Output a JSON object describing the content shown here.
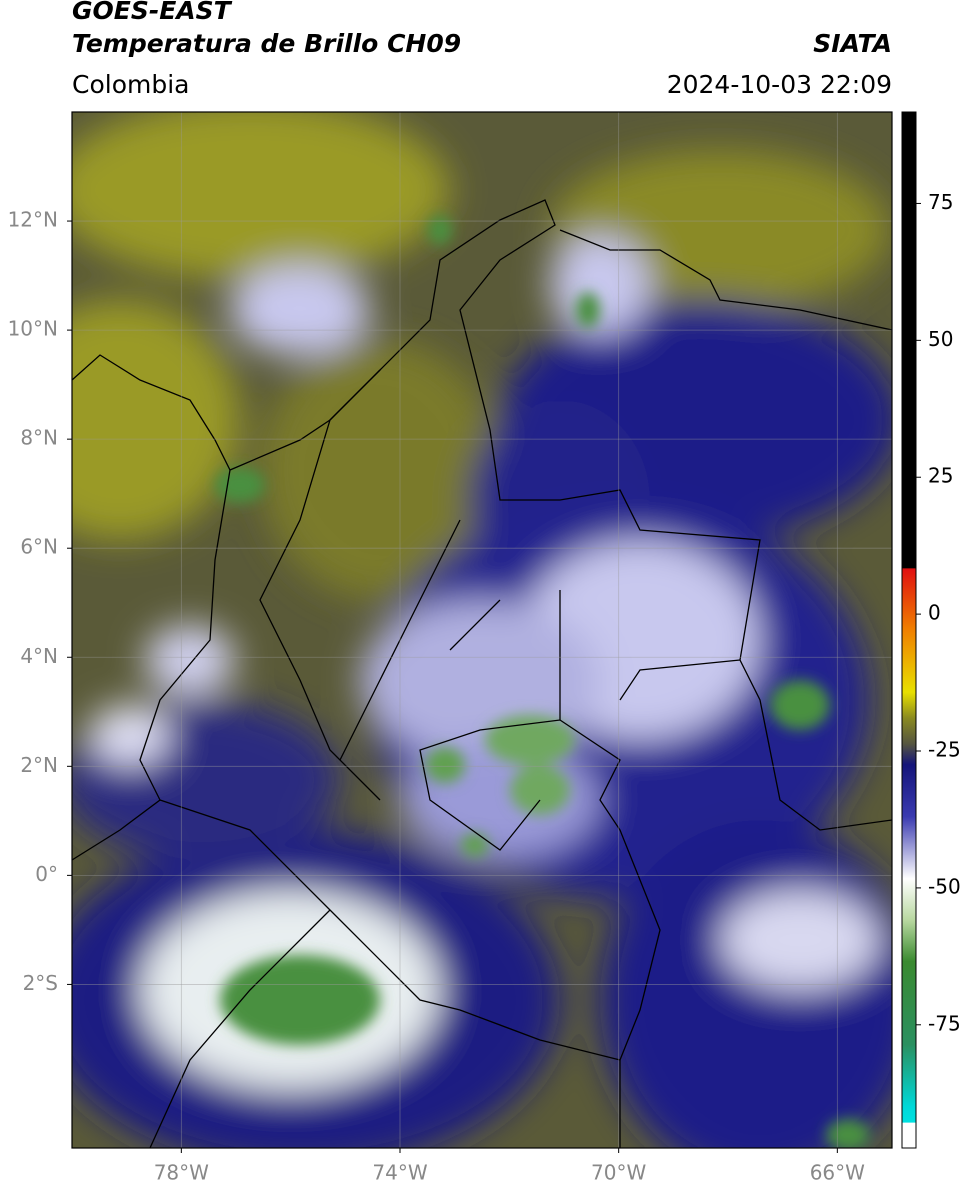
{
  "header": {
    "title": "GOES-EAST",
    "subtitle": "Temperatura de Brillo CH09",
    "source": "SIATA",
    "region": "Colombia",
    "timestamp": "2024-10-03 22:09"
  },
  "map": {
    "xlim": [
      -80,
      -65
    ],
    "ylim": [
      -5,
      14
    ],
    "yticks": [
      {
        "value": 12,
        "label": "12°N"
      },
      {
        "value": 10,
        "label": "10°N"
      },
      {
        "value": 8,
        "label": "8°N"
      },
      {
        "value": 6,
        "label": "6°N"
      },
      {
        "value": 4,
        "label": "4°N"
      },
      {
        "value": 2,
        "label": "2°N"
      },
      {
        "value": 0,
        "label": "0°"
      },
      {
        "value": -2,
        "label": "2°S"
      }
    ],
    "xticks": [
      {
        "value": -78,
        "label": "78°W"
      },
      {
        "value": -74,
        "label": "74°W"
      },
      {
        "value": -70,
        "label": "70°W"
      },
      {
        "value": -66,
        "label": "66°W"
      }
    ],
    "grid": true
  },
  "colorbar": {
    "lim": [
      -97.5,
      91.7
    ],
    "ticks": [
      75,
      50,
      25,
      0,
      -25,
      -50,
      -75
    ]
  }
}
